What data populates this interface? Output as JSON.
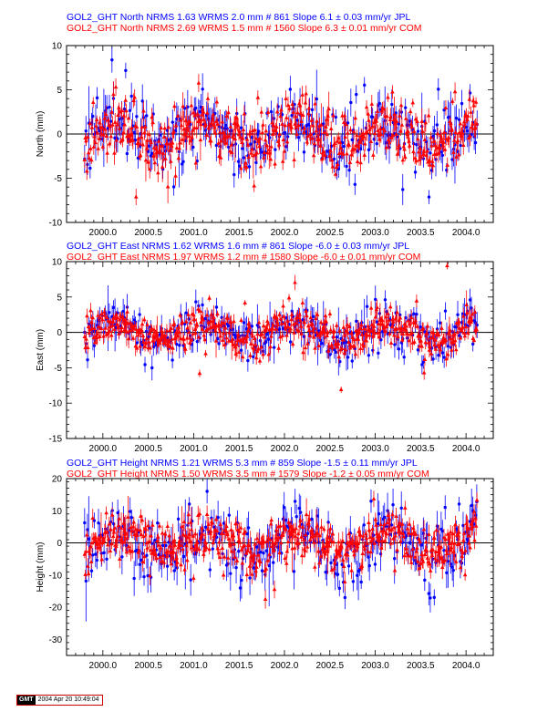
{
  "stamp": {
    "logo": "GMT",
    "date": "2004 Apr 20 10:49:04"
  },
  "colors": {
    "jpl": "#0000ff",
    "com": "#ff0000",
    "axis": "#000000",
    "zero": "#000000"
  },
  "chart_data": [
    {
      "type": "scatter",
      "component": "North",
      "ylabel": "North (mm)",
      "xlim": [
        1999.6,
        2004.3
      ],
      "ylim": [
        -10,
        10
      ],
      "xticks": [
        "2000.0",
        "2000.5",
        "2001.0",
        "2001.5",
        "2002.0",
        "2002.5",
        "2003.0",
        "2003.5",
        "2004.0"
      ],
      "xtick_values": [
        2000.0,
        2000.5,
        2001.0,
        2001.5,
        2002.0,
        2002.5,
        2003.0,
        2003.5,
        2004.0
      ],
      "yticks": [
        -10,
        -5,
        0,
        5,
        10
      ],
      "series": [
        {
          "name": "GOL2_GHT North NRMS 1.63 WRMS  2.0 mm # 861 Slope    6.1 ±  0.03 mm/yr JPL",
          "color": "#0000ff",
          "marker": "circle",
          "count": 861,
          "spread": 1.9,
          "err": 1.4,
          "seed": 11
        },
        {
          "name": "GOL2_GHT North NRMS 2.69 WRMS  1.5 mm # 1560 Slope    6.3 ±  0.01 mm/yr COM",
          "color": "#ff0000",
          "marker": "triangle",
          "count": 1560,
          "spread": 1.6,
          "err": 0.8,
          "seed": 23
        }
      ]
    },
    {
      "type": "scatter",
      "component": "East",
      "ylabel": "East (mm)",
      "xlim": [
        1999.6,
        2004.3
      ],
      "ylim": [
        -15,
        10
      ],
      "xticks": [
        "2000.0",
        "2000.5",
        "2001.0",
        "2001.5",
        "2002.0",
        "2002.5",
        "2003.0",
        "2003.5",
        "2004.0"
      ],
      "xtick_values": [
        2000.0,
        2000.5,
        2001.0,
        2001.5,
        2002.0,
        2002.5,
        2003.0,
        2003.5,
        2004.0
      ],
      "yticks": [
        -15,
        -10,
        -5,
        0,
        5,
        10
      ],
      "series": [
        {
          "name": "GOL2_GHT East NRMS 1.62 WRMS  1.6 mm # 861 Slope   -6.0 ±  0.03 mm/yr JPL",
          "color": "#0000ff",
          "marker": "circle",
          "count": 861,
          "spread": 1.6,
          "err": 1.4,
          "seed": 37
        },
        {
          "name": "GOL2_GHT East NRMS 1.97 WRMS  1.2 mm # 1580 Slope   -6.0 ±  0.01 mm/yr COM",
          "color": "#ff0000",
          "marker": "triangle",
          "count": 1580,
          "spread": 1.3,
          "err": 0.8,
          "seed": 41
        }
      ]
    },
    {
      "type": "scatter",
      "component": "Height",
      "ylabel": "Height (mm)",
      "xlim": [
        1999.6,
        2004.3
      ],
      "ylim": [
        -35,
        20
      ],
      "xticks": [
        "2000.0",
        "2000.5",
        "2001.0",
        "2001.5",
        "2002.0",
        "2002.5",
        "2003.0",
        "2003.5",
        "2004.0"
      ],
      "xtick_values": [
        2000.0,
        2000.5,
        2001.0,
        2001.5,
        2002.0,
        2002.5,
        2003.0,
        2003.5,
        2004.0
      ],
      "yticks": [
        -30,
        -20,
        -10,
        0,
        10,
        20
      ],
      "series": [
        {
          "name": "GOL2_GHT Height NRMS 1.21 WRMS  5.3 mm # 859 Slope   -1.5 ±  0.11 mm/yr JPL",
          "color": "#0000ff",
          "marker": "circle",
          "count": 859,
          "spread": 5.3,
          "err": 4.0,
          "seed": 53
        },
        {
          "name": "GOL2_GHT Height NRMS 1.50 WRMS  3.5 mm # 1579 Slope   -1.2 ±  0.05 mm/yr COM",
          "color": "#ff0000",
          "marker": "triangle",
          "count": 1579,
          "spread": 3.5,
          "err": 2.2,
          "seed": 67
        }
      ]
    }
  ]
}
